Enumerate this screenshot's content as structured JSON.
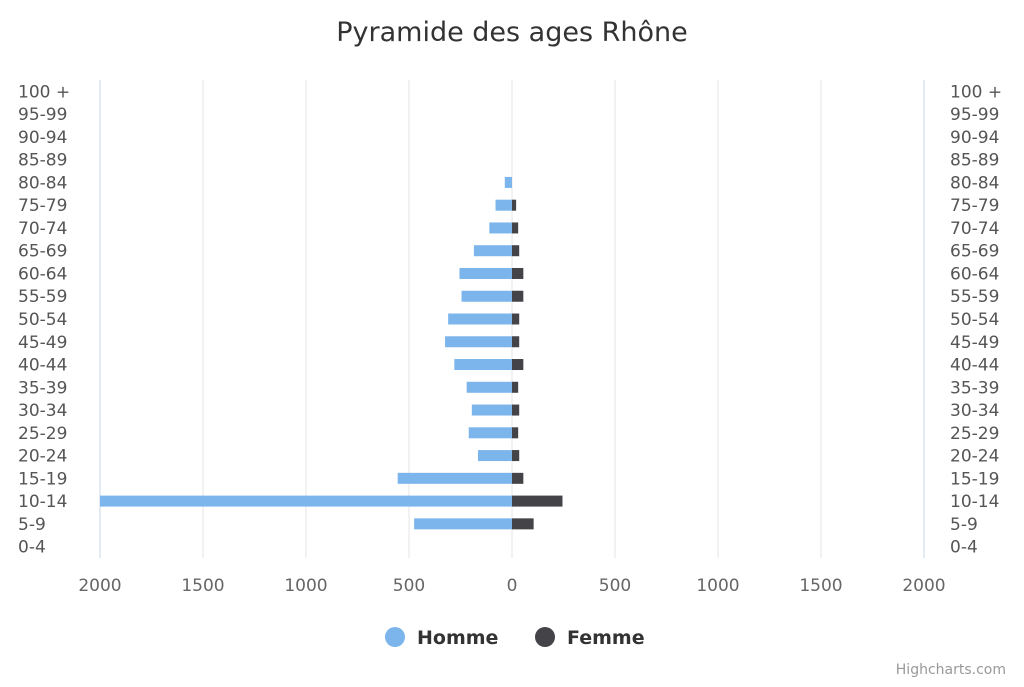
{
  "chart_data": {
    "type": "bar",
    "title": "Pyramide des ages Rhône",
    "categories": [
      "0-4",
      "5-9",
      "10-14",
      "15-19",
      "20-24",
      "25-29",
      "30-34",
      "35-39",
      "40-44",
      "45-49",
      "50-54",
      "55-59",
      "60-64",
      "65-69",
      "70-74",
      "75-79",
      "80-84",
      "85-89",
      "90-94",
      "95-99",
      "100 +"
    ],
    "series": [
      {
        "name": "Homme",
        "color": "#7cb5ec",
        "values": [
          0,
          475,
          2000,
          555,
          165,
          210,
          195,
          220,
          280,
          325,
          310,
          245,
          255,
          185,
          110,
          80,
          35,
          0,
          0,
          0,
          0
        ]
      },
      {
        "name": "Femme",
        "color": "#434348",
        "values": [
          0,
          105,
          245,
          55,
          35,
          30,
          35,
          30,
          55,
          35,
          35,
          55,
          55,
          35,
          30,
          20,
          0,
          0,
          0,
          0,
          0
        ]
      }
    ],
    "x_ticks": [
      "2000",
      "1500",
      "1000",
      "500",
      "0",
      "500",
      "1000",
      "1500",
      "2000"
    ],
    "xlim": [
      -2000,
      2000
    ],
    "grid": true,
    "legend_position": "bottom-center",
    "credits": "Highcharts.com"
  }
}
